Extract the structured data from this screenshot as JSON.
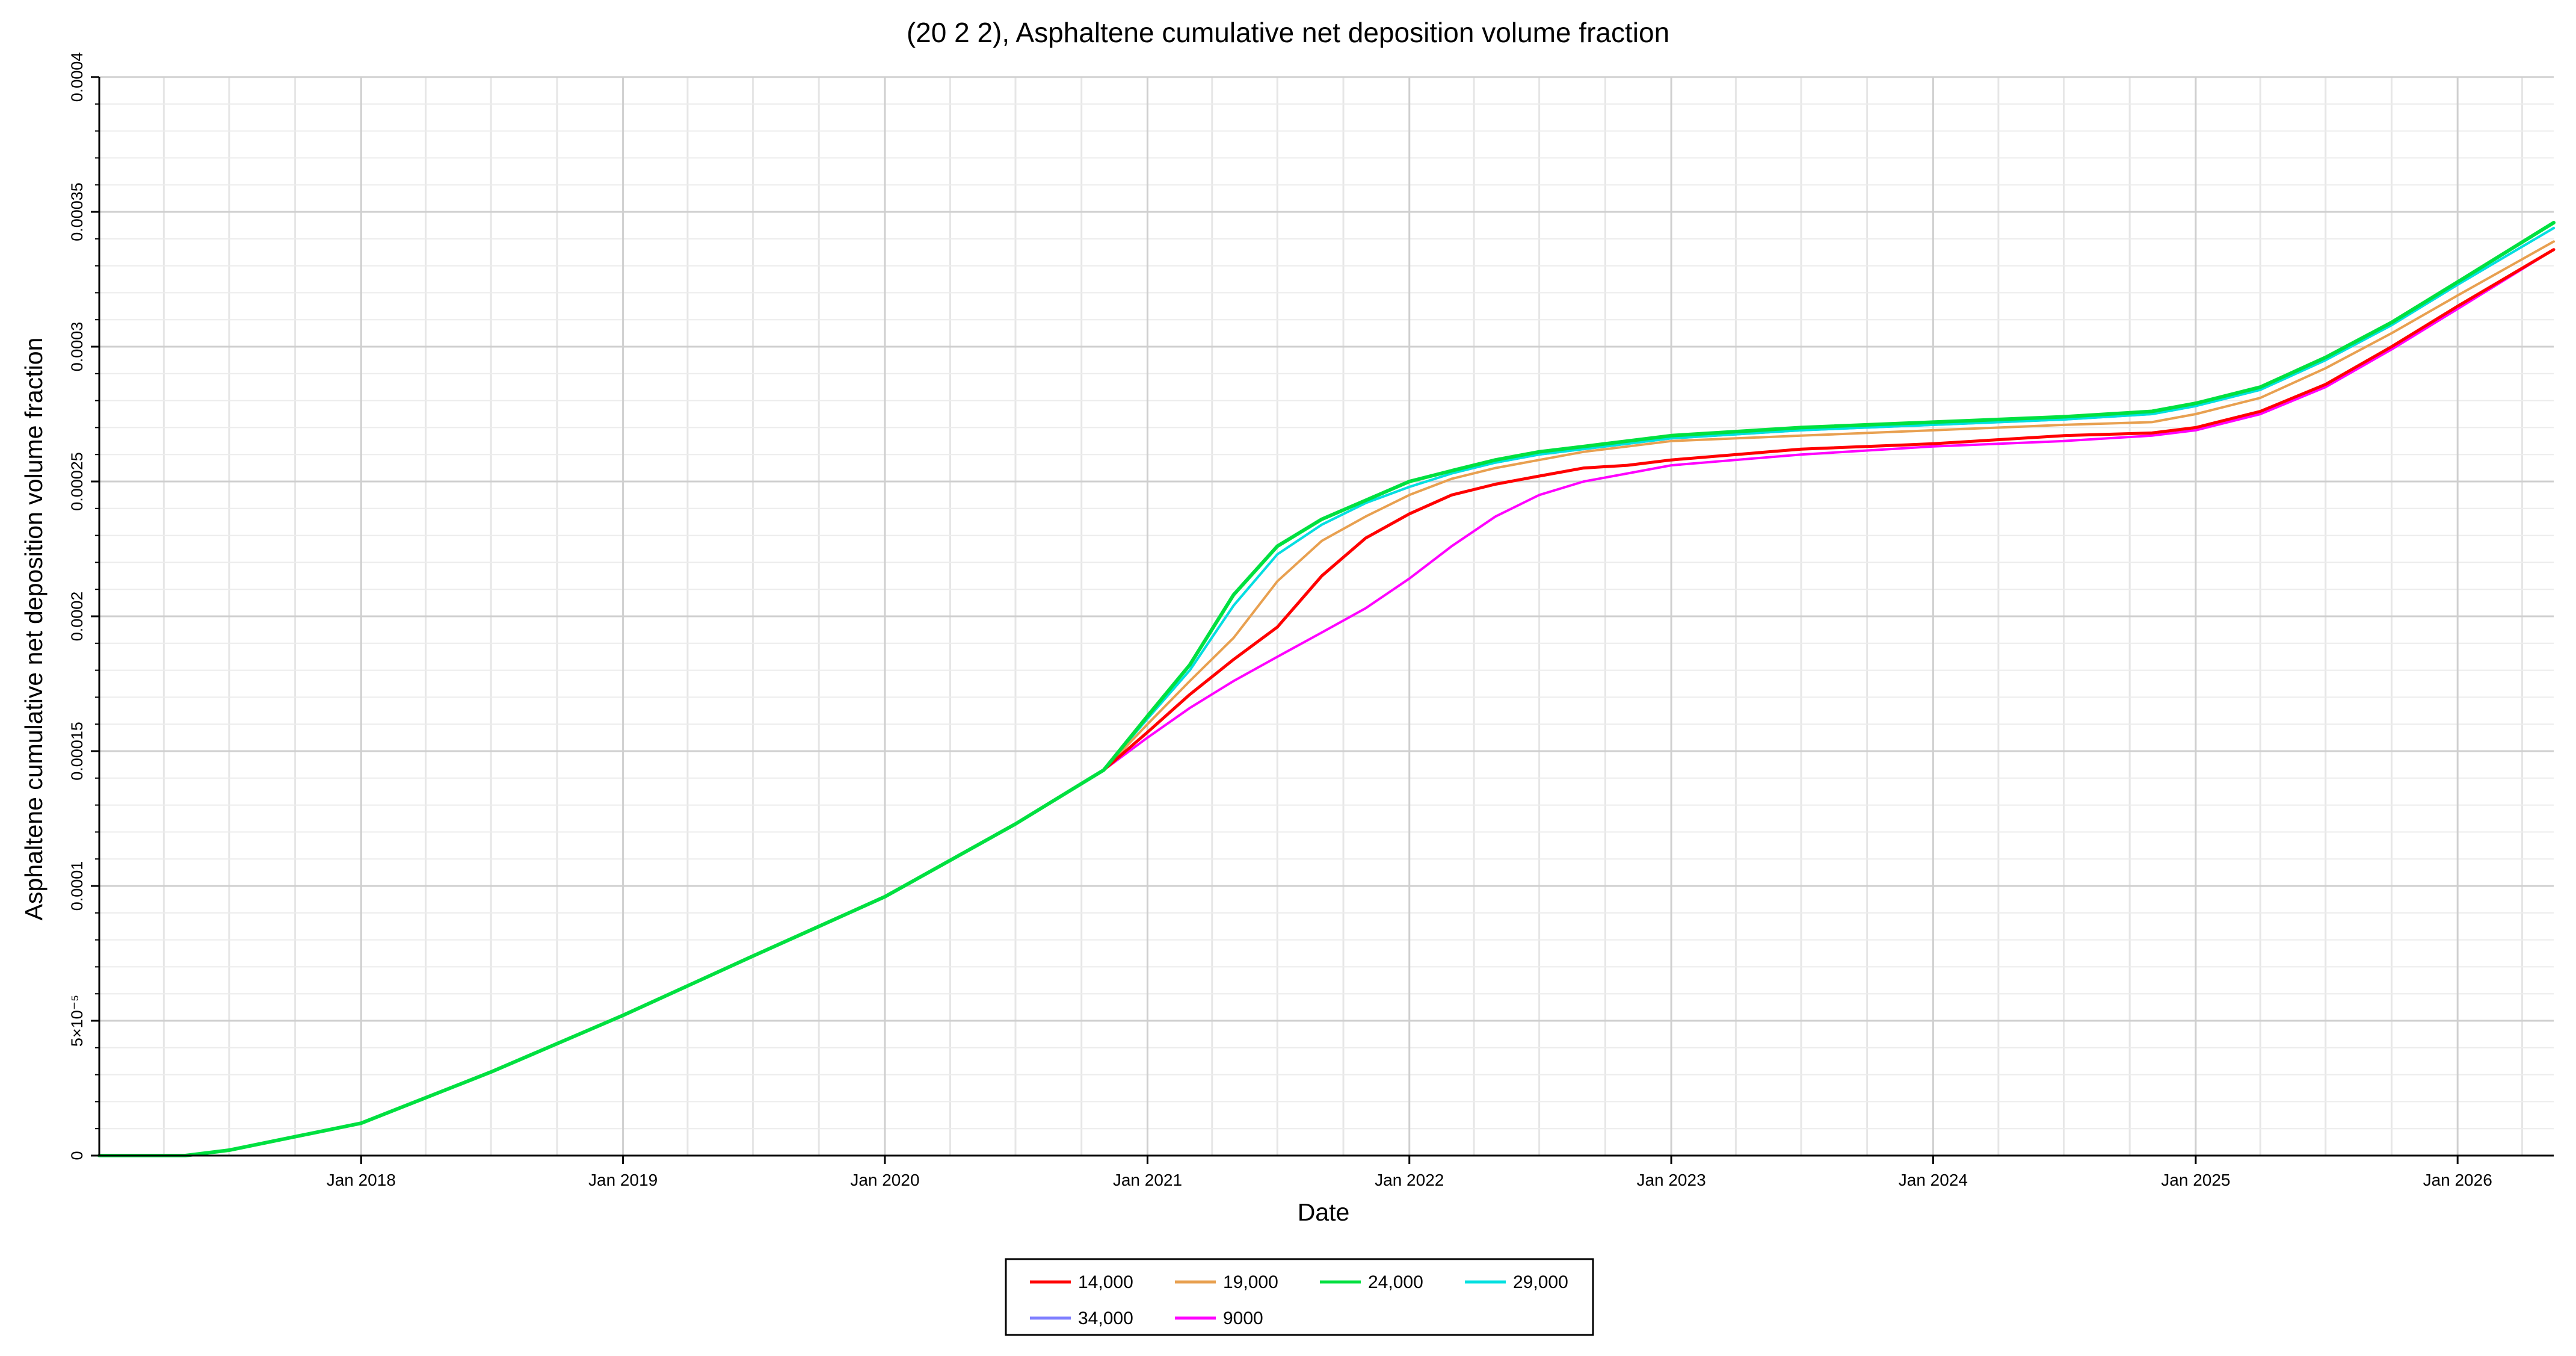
{
  "chart_data": {
    "type": "line",
    "title": "(20 2 2), Asphaltene cumulative net deposition volume fraction",
    "xlabel": "Date",
    "ylabel": "Asphaltene cumulative net deposition volume fraction",
    "xlim": [
      "2017-01-01",
      "2026-05-15"
    ],
    "ylim": [
      0,
      0.0004
    ],
    "x_ticks": [
      {
        "date": "2018-01-01",
        "label": "Jan 2018"
      },
      {
        "date": "2019-01-01",
        "label": "Jan 2019"
      },
      {
        "date": "2020-01-01",
        "label": "Jan 2020"
      },
      {
        "date": "2021-01-01",
        "label": "Jan 2021"
      },
      {
        "date": "2022-01-01",
        "label": "Jan 2022"
      },
      {
        "date": "2023-01-01",
        "label": "Jan 2023"
      },
      {
        "date": "2024-01-01",
        "label": "Jan 2024"
      },
      {
        "date": "2025-01-01",
        "label": "Jan 2025"
      },
      {
        "date": "2026-01-01",
        "label": "Jan 2026"
      }
    ],
    "y_ticks": [
      {
        "value": 0,
        "label": "0"
      },
      {
        "value": 5e-05,
        "label": "5×10⁻⁵"
      },
      {
        "value": 0.0001,
        "label": "0.0001"
      },
      {
        "value": 0.00015,
        "label": "0.00015"
      },
      {
        "value": 0.0002,
        "label": "0.0002"
      },
      {
        "value": 0.00025,
        "label": "0.00025"
      },
      {
        "value": 0.0003,
        "label": "0.0003"
      },
      {
        "value": 0.00035,
        "label": "0.00035"
      },
      {
        "value": 0.0004,
        "label": "0.0004"
      }
    ],
    "grid": true,
    "legend_position": "bottom-center",
    "x": [
      "2017-01-01",
      "2017-05-01",
      "2017-07-01",
      "2018-01-01",
      "2018-07-01",
      "2019-01-01",
      "2019-07-01",
      "2020-01-01",
      "2020-07-01",
      "2020-11-01",
      "2021-01-01",
      "2021-03-01",
      "2021-05-01",
      "2021-07-01",
      "2021-09-01",
      "2021-11-01",
      "2022-01-01",
      "2022-03-01",
      "2022-05-01",
      "2022-07-01",
      "2022-09-01",
      "2022-11-01",
      "2023-01-01",
      "2023-07-01",
      "2024-01-01",
      "2024-07-01",
      "2024-11-01",
      "2025-01-01",
      "2025-04-01",
      "2025-07-01",
      "2025-10-01",
      "2026-01-01",
      "2026-05-15"
    ],
    "series": [
      {
        "name": "14,000",
        "color": "#ff0000",
        "width": 5,
        "values": [
          0,
          0,
          2e-06,
          1.2e-05,
          3.1e-05,
          5.2e-05,
          7.4e-05,
          9.6e-05,
          0.000123,
          0.000143,
          0.000157,
          0.000171,
          0.000184,
          0.000196,
          0.000215,
          0.000229,
          0.000238,
          0.000245,
          0.000249,
          0.000252,
          0.000255,
          0.000256,
          0.000258,
          0.000262,
          0.000264,
          0.000267,
          0.000268,
          0.00027,
          0.000276,
          0.000286,
          0.0003,
          0.000315,
          0.000336
        ]
      },
      {
        "name": "19,000",
        "color": "#e8a050",
        "width": 4,
        "values": [
          0,
          0,
          2e-06,
          1.2e-05,
          3.1e-05,
          5.2e-05,
          7.4e-05,
          9.6e-05,
          0.000123,
          0.000143,
          0.00016,
          0.000176,
          0.000192,
          0.000213,
          0.000228,
          0.000237,
          0.000245,
          0.000251,
          0.000255,
          0.000258,
          0.000261,
          0.000263,
          0.000265,
          0.000267,
          0.000269,
          0.000271,
          0.000272,
          0.000275,
          0.000281,
          0.000292,
          0.000305,
          0.000319,
          0.000339
        ]
      },
      {
        "name": "24,000",
        "color": "#00e040",
        "width": 6,
        "values": [
          0,
          0,
          2e-06,
          1.2e-05,
          3.1e-05,
          5.2e-05,
          7.4e-05,
          9.6e-05,
          0.000123,
          0.000143,
          0.000163,
          0.000182,
          0.000208,
          0.000226,
          0.000236,
          0.000243,
          0.00025,
          0.000254,
          0.000258,
          0.000261,
          0.000263,
          0.000265,
          0.000267,
          0.00027,
          0.000272,
          0.000274,
          0.000276,
          0.000279,
          0.000285,
          0.000296,
          0.000309,
          0.000324,
          0.000346
        ]
      },
      {
        "name": "29,000",
        "color": "#00e0e0",
        "width": 4,
        "values": [
          0,
          0,
          2e-06,
          1.2e-05,
          3.1e-05,
          5.2e-05,
          7.4e-05,
          9.6e-05,
          0.000123,
          0.000143,
          0.000162,
          0.00018,
          0.000204,
          0.000223,
          0.000234,
          0.000242,
          0.000248,
          0.000253,
          0.000257,
          0.00026,
          0.000262,
          0.000264,
          0.000266,
          0.000269,
          0.000271,
          0.000273,
          0.000275,
          0.000278,
          0.000284,
          0.000295,
          0.000308,
          0.000323,
          0.000344
        ]
      },
      {
        "name": "34,000",
        "color": "#8080ff",
        "width": 4,
        "values": [
          0,
          0,
          2e-06,
          1.2e-05,
          3.1e-05,
          5.2e-05,
          7.4e-05,
          9.6e-05,
          0.000123,
          0.000143,
          0.000162,
          0.00018,
          0.000204,
          0.000223,
          0.000234,
          0.000242,
          0.000248,
          0.000253,
          0.000257,
          0.00026,
          0.000262,
          0.000264,
          0.000266,
          0.000269,
          0.000271,
          0.000273,
          0.000275,
          0.000278,
          0.000284,
          0.000295,
          0.000308,
          0.000323,
          0.000344
        ]
      },
      {
        "name": "9000",
        "color": "#ff00ff",
        "width": 4,
        "values": [
          0,
          0,
          2e-06,
          1.2e-05,
          3.1e-05,
          5.2e-05,
          7.4e-05,
          9.6e-05,
          0.000123,
          0.000143,
          0.000155,
          0.000166,
          0.000176,
          0.000185,
          0.000194,
          0.000203,
          0.000214,
          0.000226,
          0.000237,
          0.000245,
          0.00025,
          0.000253,
          0.000256,
          0.00026,
          0.000263,
          0.000265,
          0.000267,
          0.000269,
          0.000275,
          0.000285,
          0.000299,
          0.000314,
          0.000336
        ]
      }
    ]
  }
}
